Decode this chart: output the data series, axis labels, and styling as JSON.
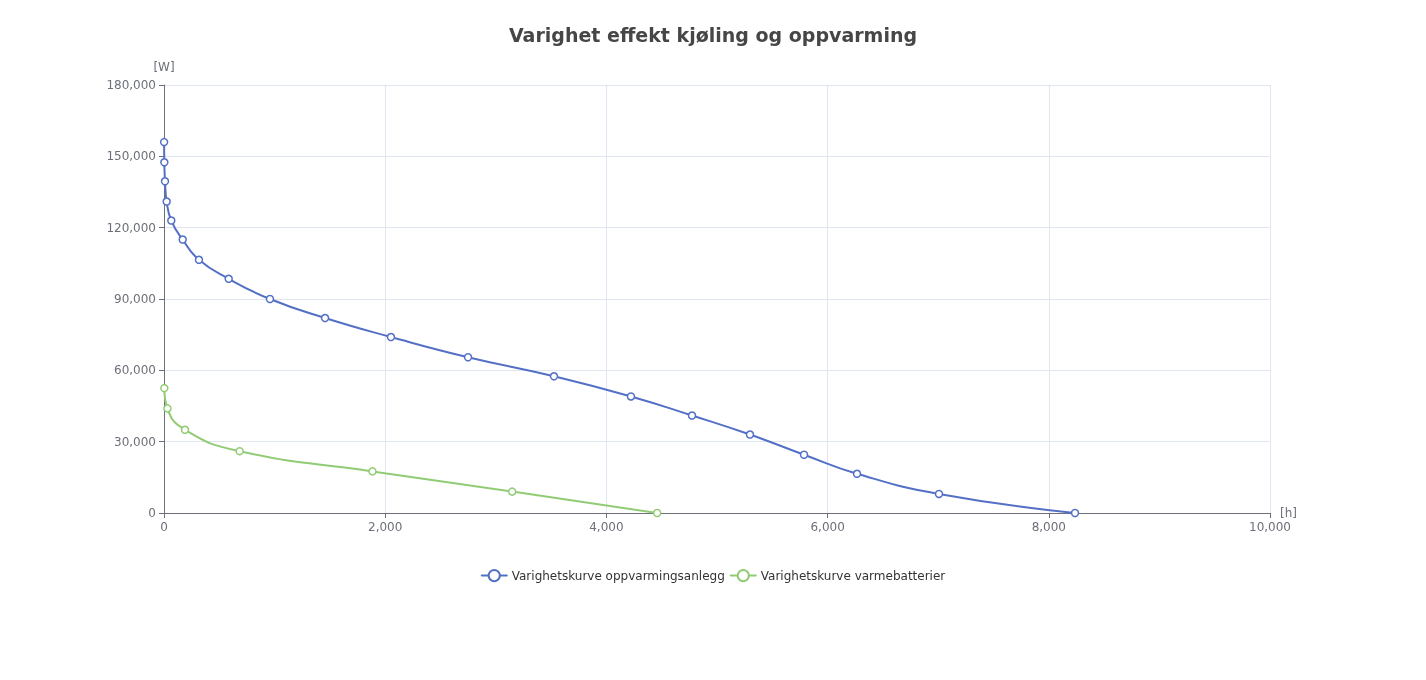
{
  "chart_data": {
    "type": "line",
    "title": "Varighet effekt kjøling og oppvarming",
    "xlabel": "[h]",
    "ylabel": "[W]",
    "xlim": [
      0,
      10000
    ],
    "xticks": [
      0,
      {
        "value": 2000,
        "label": "2,000"
      },
      {
        "value": 4000,
        "label": "4,000"
      },
      {
        "value": 6000,
        "label": "6,000"
      },
      {
        "value": 8000,
        "label": "8,000"
      },
      {
        "value": 10000,
        "label": "10,000"
      }
    ],
    "ylim": [
      0,
      180000
    ],
    "yticks": [
      0,
      {
        "value": 30000,
        "label": "30,000"
      },
      {
        "value": 60000,
        "label": "60,000"
      },
      {
        "value": 90000,
        "label": "90,000"
      },
      {
        "value": 120000,
        "label": "120,000"
      },
      {
        "value": 150000,
        "label": "150,000"
      },
      {
        "value": 180000,
        "label": "180,000"
      }
    ],
    "grid": true,
    "legend": "bottom",
    "marker": "circle",
    "line_style": "solid",
    "series": [
      {
        "name": "Varighetskurve oppvarmingsanlegg",
        "color": "#5470c6",
        "x": [
          1,
          3,
          9,
          24,
          66,
          169,
          316,
          585,
          958,
          1456,
          2052,
          2749,
          3526,
          4222,
          4774,
          5298,
          5787,
          6266,
          7007,
          8237
        ],
        "values": [
          156000,
          147500,
          139500,
          131000,
          123000,
          115000,
          106500,
          98500,
          90000,
          82000,
          74000,
          65500,
          57500,
          49000,
          41000,
          33000,
          24500,
          16500,
          8000,
          0
        ]
      },
      {
        "name": "Varighetskurve varmebatterier",
        "color": "#91cc75",
        "x": [
          3,
          31,
          190,
          684,
          1885,
          3148,
          4459
        ],
        "values": [
          52500,
          44000,
          35000,
          26000,
          17500,
          9000,
          0
        ]
      }
    ]
  }
}
